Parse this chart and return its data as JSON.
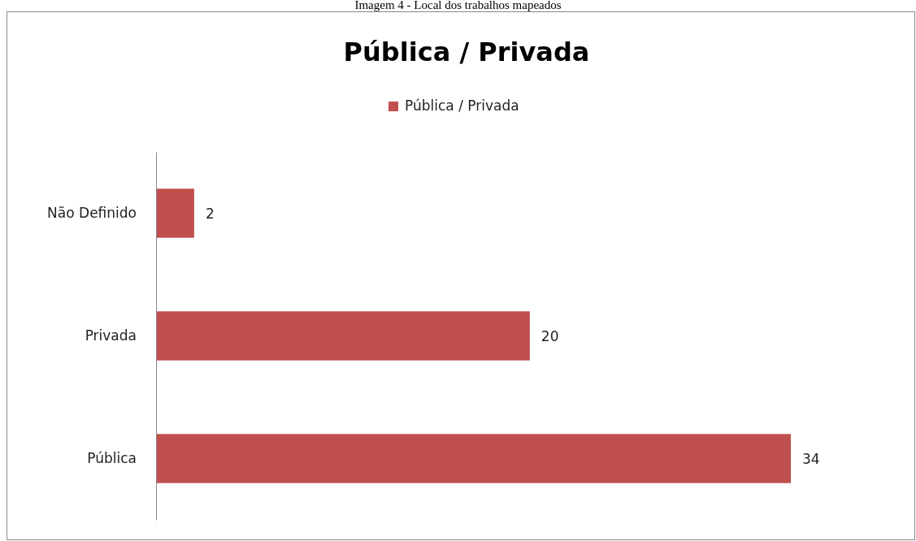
{
  "chart_data": {
    "type": "bar",
    "orientation": "horizontal",
    "title": "Pública / Privada",
    "annotations": [
      "Imagem 4 - Local dos trabalhos mapeados"
    ],
    "categories": [
      "Não Definido",
      "Privada",
      "Pública"
    ],
    "series": [
      {
        "name": "Pública / Privada",
        "color": "#c0504d",
        "values": [
          2,
          20,
          34
        ]
      }
    ],
    "data_labels": true,
    "legend": "top",
    "tick_labels": "y",
    "grid": false
  }
}
